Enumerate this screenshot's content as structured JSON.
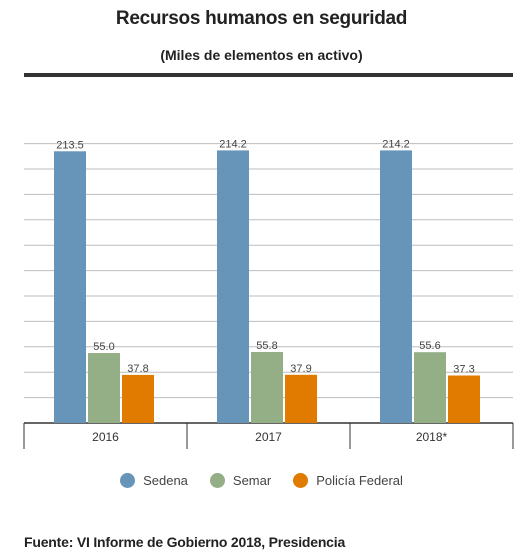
{
  "header": {
    "title": "Recursos humanos en seguridad",
    "subtitle": "(Miles de elementos en activo)"
  },
  "source": "Fuente: VI Informe de Gobierno 2018, Presidencia",
  "colors": {
    "sedena": "#6795ba",
    "semar": "#94ae86",
    "policia": "#e07b00",
    "grid": "#bdbdbd",
    "axis": "#333333"
  },
  "chart_data": {
    "type": "bar",
    "title": "Recursos humanos en seguridad",
    "subtitle": "(Miles de elementos en activo)",
    "categories": [
      "2016",
      "2017",
      "2018*"
    ],
    "series": [
      {
        "name": "Sedena",
        "values": [
          213.5,
          214.2,
          214.2
        ],
        "labels": [
          "213.5",
          "214.2",
          "214.2"
        ]
      },
      {
        "name": "Semar",
        "values": [
          55.0,
          55.8,
          55.6
        ],
        "labels": [
          "55.0",
          "55.8",
          "55.6"
        ]
      },
      {
        "name": "Policía Federal",
        "values": [
          37.8,
          37.9,
          37.3
        ],
        "labels": [
          "37.8",
          "37.9",
          "37.3"
        ]
      }
    ],
    "ylim": [
      0,
      220
    ],
    "grid": true,
    "legend": "bottom"
  }
}
